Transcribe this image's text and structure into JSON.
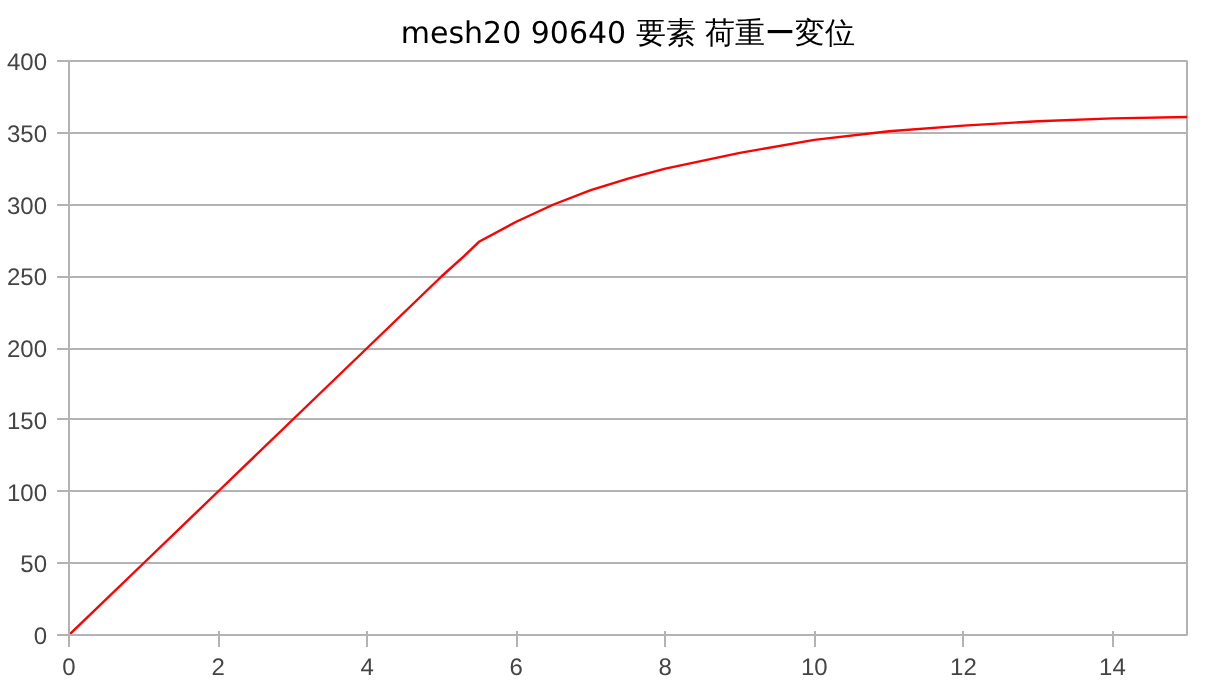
{
  "chart_data": {
    "type": "line",
    "title": "mesh20 90640 要素 荷重ー変位",
    "x": [
      0,
      1,
      2,
      3,
      4,
      5,
      5.3,
      5.5,
      6,
      6.5,
      7,
      7.5,
      8,
      9,
      10,
      11,
      12,
      13,
      14,
      15
    ],
    "series": [
      {
        "color": "#ff0000",
        "values": [
          0,
          50,
          100,
          150,
          200,
          250,
          264,
          274,
          288,
          300,
          310,
          318,
          325,
          336,
          345,
          351,
          355,
          358,
          360,
          361
        ]
      }
    ],
    "xlim": [
      0,
      15
    ],
    "ylim": [
      0,
      400
    ],
    "xticks": [
      0,
      2,
      4,
      6,
      8,
      10,
      12,
      14
    ],
    "yticks": [
      0,
      50,
      100,
      150,
      200,
      250,
      300,
      350,
      400
    ],
    "grid": "y",
    "marker": "none",
    "line_style": "solid"
  }
}
